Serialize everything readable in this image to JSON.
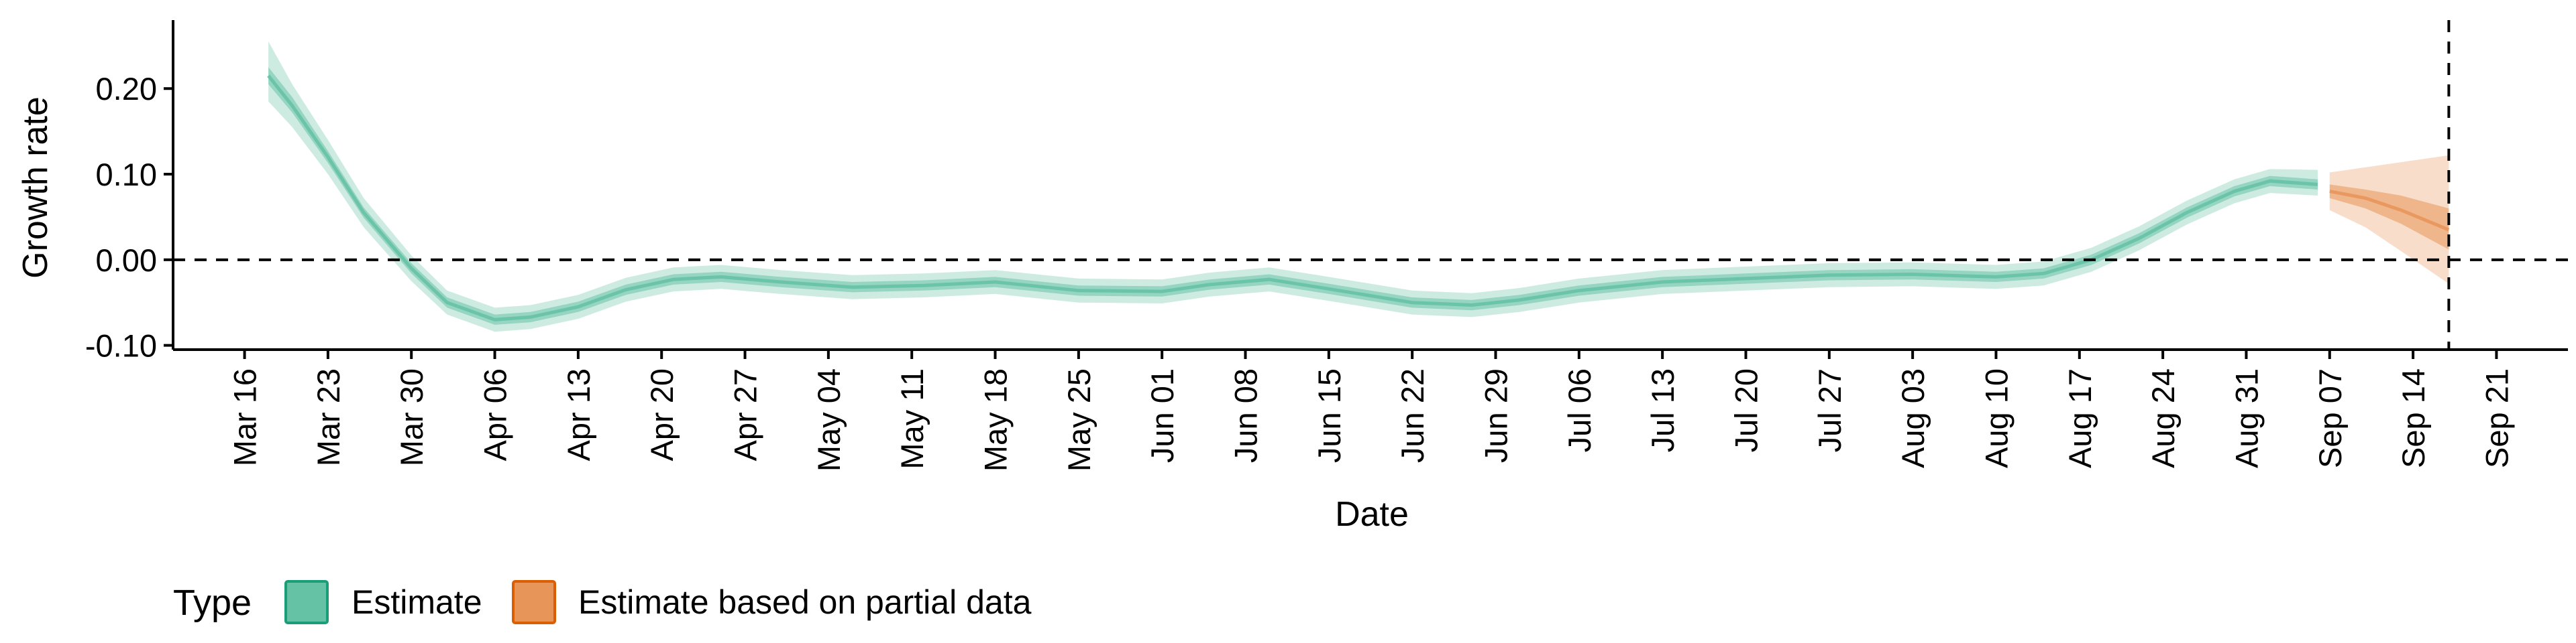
{
  "chart_data": {
    "type": "area",
    "xlabel": "Date",
    "ylabel": "Growth rate",
    "ylim": [
      -0.105,
      0.28
    ],
    "xlim": [
      "2020-03-10",
      "2020-09-27"
    ],
    "yticks": [
      {
        "value": 0.2,
        "label": "0.20"
      },
      {
        "value": 0.1,
        "label": "0.10"
      },
      {
        "value": 0.0,
        "label": "0.00"
      },
      {
        "value": -0.1,
        "label": "-0.10"
      }
    ],
    "xticks": [
      {
        "date": "2020-03-16",
        "label": "Mar 16"
      },
      {
        "date": "2020-03-23",
        "label": "Mar 23"
      },
      {
        "date": "2020-03-30",
        "label": "Mar 30"
      },
      {
        "date": "2020-04-06",
        "label": "Apr 06"
      },
      {
        "date": "2020-04-13",
        "label": "Apr 13"
      },
      {
        "date": "2020-04-20",
        "label": "Apr 20"
      },
      {
        "date": "2020-04-27",
        "label": "Apr 27"
      },
      {
        "date": "2020-05-04",
        "label": "May 04"
      },
      {
        "date": "2020-05-11",
        "label": "May 11"
      },
      {
        "date": "2020-05-18",
        "label": "May 18"
      },
      {
        "date": "2020-05-25",
        "label": "May 25"
      },
      {
        "date": "2020-06-01",
        "label": "Jun 01"
      },
      {
        "date": "2020-06-08",
        "label": "Jun 08"
      },
      {
        "date": "2020-06-15",
        "label": "Jun 15"
      },
      {
        "date": "2020-06-22",
        "label": "Jun 22"
      },
      {
        "date": "2020-06-29",
        "label": "Jun 29"
      },
      {
        "date": "2020-07-06",
        "label": "Jul 06"
      },
      {
        "date": "2020-07-13",
        "label": "Jul 13"
      },
      {
        "date": "2020-07-20",
        "label": "Jul 20"
      },
      {
        "date": "2020-07-27",
        "label": "Jul 27"
      },
      {
        "date": "2020-08-03",
        "label": "Aug 03"
      },
      {
        "date": "2020-08-10",
        "label": "Aug 10"
      },
      {
        "date": "2020-08-17",
        "label": "Aug 17"
      },
      {
        "date": "2020-08-24",
        "label": "Aug 24"
      },
      {
        "date": "2020-08-31",
        "label": "Aug 31"
      },
      {
        "date": "2020-09-07",
        "label": "Sep 07"
      },
      {
        "date": "2020-09-14",
        "label": "Sep 14"
      },
      {
        "date": "2020-09-21",
        "label": "Sep 21"
      }
    ],
    "hline": 0,
    "vline": "2020-09-17",
    "legend": {
      "position": "bottom-left",
      "title": "Type",
      "entries": [
        {
          "label": "Estimate",
          "color": "#66c2a5",
          "border": "#1b9e77"
        },
        {
          "label": "Estimate based on partial data",
          "color": "#e8955a",
          "border": "#d95f02"
        }
      ]
    },
    "series": [
      {
        "name": "Estimate",
        "color": "#66c2a5",
        "points": [
          {
            "x": "2020-03-18",
            "mean": 0.215,
            "lo50": 0.205,
            "hi50": 0.225,
            "lo90": 0.185,
            "hi90": 0.255
          },
          {
            "x": "2020-03-20",
            "mean": 0.18,
            "lo50": 0.172,
            "hi50": 0.19,
            "lo90": 0.155,
            "hi90": 0.205
          },
          {
            "x": "2020-03-23",
            "mean": 0.12,
            "lo50": 0.113,
            "hi50": 0.127,
            "lo90": 0.1,
            "hi90": 0.14
          },
          {
            "x": "2020-03-26",
            "mean": 0.055,
            "lo50": 0.049,
            "hi50": 0.061,
            "lo90": 0.038,
            "hi90": 0.072
          },
          {
            "x": "2020-03-30",
            "mean": -0.01,
            "lo50": -0.016,
            "hi50": -0.004,
            "lo90": -0.025,
            "hi90": 0.005
          },
          {
            "x": "2020-04-02",
            "mean": -0.05,
            "lo50": -0.056,
            "hi50": -0.044,
            "lo90": -0.064,
            "hi90": -0.036
          },
          {
            "x": "2020-04-06",
            "mean": -0.07,
            "lo50": -0.076,
            "hi50": -0.064,
            "lo90": -0.084,
            "hi90": -0.056
          },
          {
            "x": "2020-04-09",
            "mean": -0.067,
            "lo50": -0.073,
            "hi50": -0.061,
            "lo90": -0.081,
            "hi90": -0.053
          },
          {
            "x": "2020-04-13",
            "mean": -0.055,
            "lo50": -0.061,
            "hi50": -0.049,
            "lo90": -0.069,
            "hi90": -0.041
          },
          {
            "x": "2020-04-17",
            "mean": -0.035,
            "lo50": -0.041,
            "hi50": -0.029,
            "lo90": -0.049,
            "hi90": -0.021
          },
          {
            "x": "2020-04-21",
            "mean": -0.023,
            "lo50": -0.029,
            "hi50": -0.017,
            "lo90": -0.037,
            "hi90": -0.009
          },
          {
            "x": "2020-04-25",
            "mean": -0.02,
            "lo50": -0.026,
            "hi50": -0.014,
            "lo90": -0.034,
            "hi90": -0.006
          },
          {
            "x": "2020-04-30",
            "mean": -0.026,
            "lo50": -0.032,
            "hi50": -0.02,
            "lo90": -0.04,
            "hi90": -0.012
          },
          {
            "x": "2020-05-06",
            "mean": -0.032,
            "lo50": -0.038,
            "hi50": -0.026,
            "lo90": -0.046,
            "hi90": -0.018
          },
          {
            "x": "2020-05-12",
            "mean": -0.03,
            "lo50": -0.036,
            "hi50": -0.024,
            "lo90": -0.044,
            "hi90": -0.016
          },
          {
            "x": "2020-05-18",
            "mean": -0.026,
            "lo50": -0.032,
            "hi50": -0.02,
            "lo90": -0.04,
            "hi90": -0.012
          },
          {
            "x": "2020-05-25",
            "mean": -0.036,
            "lo50": -0.042,
            "hi50": -0.03,
            "lo90": -0.05,
            "hi90": -0.022
          },
          {
            "x": "2020-06-01",
            "mean": -0.037,
            "lo50": -0.043,
            "hi50": -0.031,
            "lo90": -0.051,
            "hi90": -0.023
          },
          {
            "x": "2020-06-05",
            "mean": -0.029,
            "lo50": -0.035,
            "hi50": -0.023,
            "lo90": -0.043,
            "hi90": -0.015
          },
          {
            "x": "2020-06-10",
            "mean": -0.023,
            "lo50": -0.029,
            "hi50": -0.017,
            "lo90": -0.037,
            "hi90": -0.009
          },
          {
            "x": "2020-06-15",
            "mean": -0.034,
            "lo50": -0.04,
            "hi50": -0.028,
            "lo90": -0.048,
            "hi90": -0.02
          },
          {
            "x": "2020-06-22",
            "mean": -0.05,
            "lo50": -0.056,
            "hi50": -0.044,
            "lo90": -0.064,
            "hi90": -0.036
          },
          {
            "x": "2020-06-27",
            "mean": -0.053,
            "lo50": -0.059,
            "hi50": -0.047,
            "lo90": -0.067,
            "hi90": -0.039
          },
          {
            "x": "2020-07-01",
            "mean": -0.047,
            "lo50": -0.053,
            "hi50": -0.041,
            "lo90": -0.061,
            "hi90": -0.033
          },
          {
            "x": "2020-07-06",
            "mean": -0.036,
            "lo50": -0.042,
            "hi50": -0.03,
            "lo90": -0.05,
            "hi90": -0.022
          },
          {
            "x": "2020-07-13",
            "mean": -0.026,
            "lo50": -0.032,
            "hi50": -0.02,
            "lo90": -0.04,
            "hi90": -0.012
          },
          {
            "x": "2020-07-20",
            "mean": -0.022,
            "lo50": -0.028,
            "hi50": -0.016,
            "lo90": -0.036,
            "hi90": -0.008
          },
          {
            "x": "2020-07-27",
            "mean": -0.018,
            "lo50": -0.024,
            "hi50": -0.012,
            "lo90": -0.032,
            "hi90": -0.004
          },
          {
            "x": "2020-08-03",
            "mean": -0.017,
            "lo50": -0.023,
            "hi50": -0.011,
            "lo90": -0.031,
            "hi90": -0.003
          },
          {
            "x": "2020-08-10",
            "mean": -0.02,
            "lo50": -0.026,
            "hi50": -0.014,
            "lo90": -0.034,
            "hi90": -0.006
          },
          {
            "x": "2020-08-14",
            "mean": -0.016,
            "lo50": -0.022,
            "hi50": -0.01,
            "lo90": -0.03,
            "hi90": -0.002
          },
          {
            "x": "2020-08-18",
            "mean": 0.0,
            "lo50": -0.006,
            "hi50": 0.006,
            "lo90": -0.014,
            "hi90": 0.014
          },
          {
            "x": "2020-08-22",
            "mean": 0.025,
            "lo50": 0.019,
            "hi50": 0.031,
            "lo90": 0.011,
            "hi90": 0.039
          },
          {
            "x": "2020-08-26",
            "mean": 0.055,
            "lo50": 0.049,
            "hi50": 0.061,
            "lo90": 0.041,
            "hi90": 0.069
          },
          {
            "x": "2020-08-30",
            "mean": 0.08,
            "lo50": 0.074,
            "hi50": 0.086,
            "lo90": 0.066,
            "hi90": 0.094
          },
          {
            "x": "2020-09-02",
            "mean": 0.092,
            "lo50": 0.086,
            "hi50": 0.098,
            "lo90": 0.078,
            "hi90": 0.106
          },
          {
            "x": "2020-09-06",
            "mean": 0.088,
            "lo50": 0.082,
            "hi50": 0.094,
            "lo90": 0.075,
            "hi90": 0.105
          }
        ]
      },
      {
        "name": "Estimate based on partial data",
        "color": "#e8955a",
        "points": [
          {
            "x": "2020-09-07",
            "mean": 0.08,
            "lo50": 0.072,
            "hi50": 0.088,
            "lo90": 0.058,
            "hi90": 0.102
          },
          {
            "x": "2020-09-10",
            "mean": 0.072,
            "lo50": 0.06,
            "hi50": 0.082,
            "lo90": 0.038,
            "hi90": 0.108
          },
          {
            "x": "2020-09-13",
            "mean": 0.058,
            "lo50": 0.042,
            "hi50": 0.075,
            "lo90": 0.01,
            "hi90": 0.114
          },
          {
            "x": "2020-09-17",
            "mean": 0.035,
            "lo50": 0.012,
            "hi50": 0.06,
            "lo90": -0.028,
            "hi90": 0.122
          }
        ]
      }
    ]
  }
}
